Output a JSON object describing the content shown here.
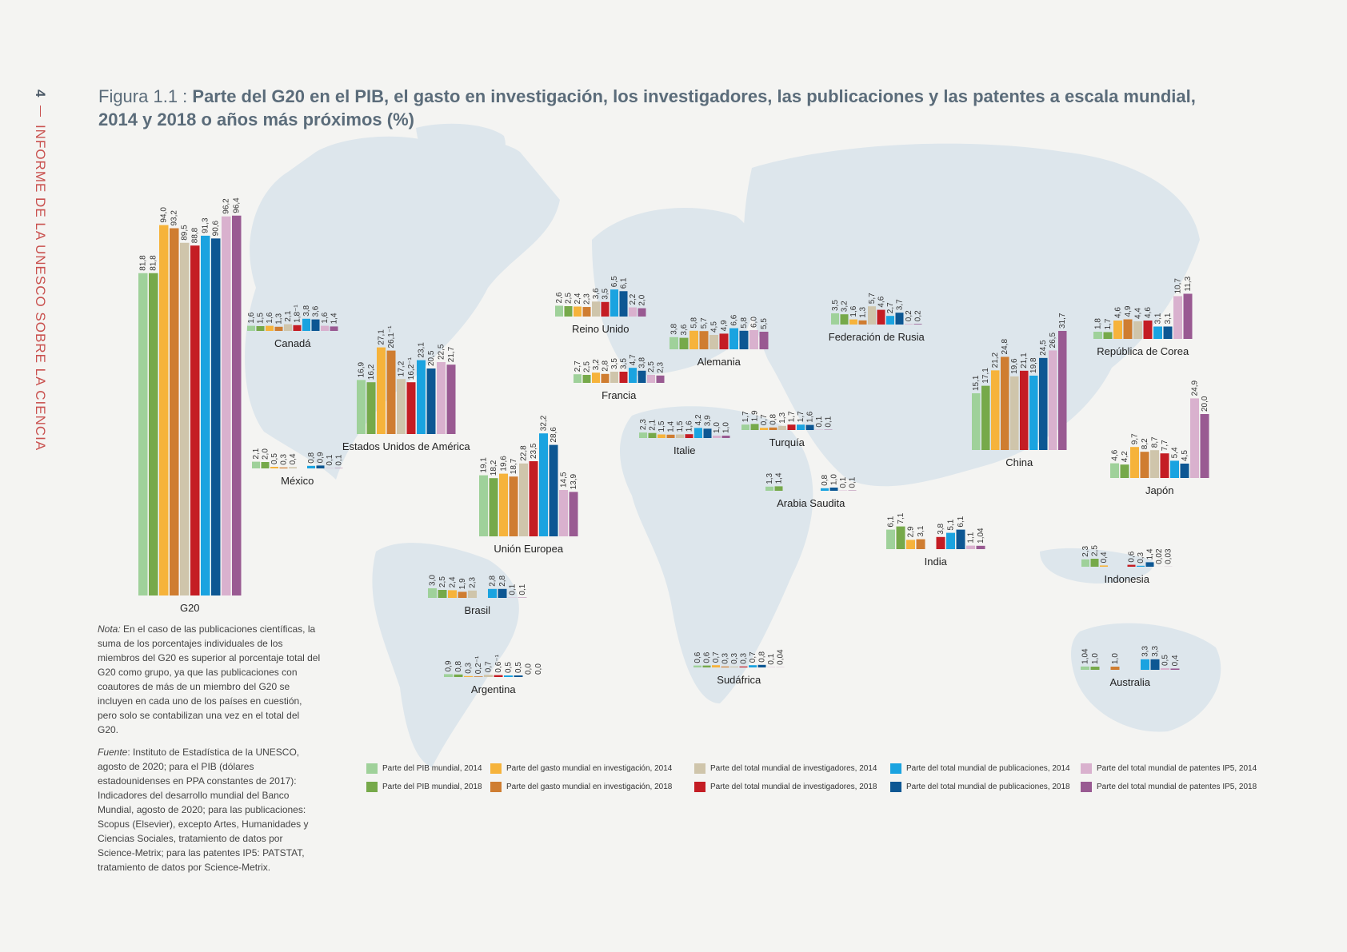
{
  "page": {
    "page_number": "4",
    "running_header": "INFORME DE LA UNESCO SOBRE LA CIENCIA",
    "title_prefix": "Figura 1.1 : ",
    "title_main": "Parte del G20 en el PIB, el gasto en investigación, los investigadores, las publicaciones y las patentes a escala mundial, 2014 y 2018 o años más próximos (%)"
  },
  "notes": {
    "nota_label": "Nota:",
    "nota_text": " En el caso de las publicaciones científicas, la suma de los porcentajes individuales de los miembros del G20 es superior al porcentaje total del G20 como grupo, ya que las publicaciones con coautores de más de un miembro del G20 se incluyen en cada uno de los países en cuestión, pero solo se contabilizan una vez en el total del G20.",
    "fuente_label": "Fuente",
    "fuente_text": ": Instituto de Estadística de la UNESCO, agosto de 2020; para el PIB (dólares estadounidenses en PPA constantes de 2017): Indicadores del desarrollo mundial del Banco Mundial, agosto de 2020; para las publicaciones: Scopus (Elsevier), excepto Artes, Humanidades y Ciencias Sociales, tratamiento de datos por Science-Metrix; para las patentes IP5: PATSTAT, tratamiento de datos por Science-Metrix."
  },
  "chart_data": {
    "type": "bar",
    "series": [
      {
        "name": "Parte del PIB mundial, 2014",
        "color": "#9fd19a"
      },
      {
        "name": "Parte del PIB mundial, 2018",
        "color": "#76a94a"
      },
      {
        "name": "Parte del gasto mundial en investigación, 2014",
        "color": "#f6b33b"
      },
      {
        "name": "Parte del gasto mundial en investigación, 2018",
        "color": "#cf7d31"
      },
      {
        "name": "Parte del total mundial de investigadores, 2014",
        "color": "#cfc5ab"
      },
      {
        "name": "Parte del total mundial de investigadores, 2018",
        "color": "#c41d24"
      },
      {
        "name": "Parte del total mundial de publicaciones, 2014",
        "color": "#1aa3e0"
      },
      {
        "name": "Parte del total mundial de publicaciones, 2018",
        "color": "#0d5793"
      },
      {
        "name": "Parte del total mundial de patentes IP5, 2014",
        "color": "#d9b1ce"
      },
      {
        "name": "Parte del total mundial de patentes IP5, 2018",
        "color": "#995a92"
      }
    ],
    "groups": [
      {
        "name": "G20",
        "values": [
          81.8,
          81.8,
          94.0,
          93.2,
          89.5,
          88.8,
          91.3,
          90.6,
          96.2,
          96.4
        ],
        "labels": [
          "81,8",
          "81,8",
          "94,0",
          "93,2",
          "89,5",
          "88,8",
          "91,3",
          "90,6",
          "96,2",
          "96,4"
        ]
      },
      {
        "name": "Canadá",
        "values": [
          1.6,
          1.5,
          1.6,
          1.3,
          2.1,
          1.8,
          3.8,
          3.6,
          1.6,
          1.4
        ],
        "labels": [
          "1,6",
          "1,5",
          "1,6",
          "1,3",
          "2,1",
          "1,8⁻¹",
          "3,8",
          "3,6",
          "1,6",
          "1,4"
        ]
      },
      {
        "name": "México",
        "values": [
          2.1,
          2.0,
          0.5,
          0.3,
          0.4,
          0,
          0.8,
          0.9,
          0.1,
          0.1
        ],
        "labels": [
          "2,1",
          "2,0",
          "0,5",
          "0,3",
          "0,4",
          "",
          "0,8",
          "0,9",
          "0,1",
          "0,1"
        ]
      },
      {
        "name": "Estados Unidos de América",
        "values": [
          16.9,
          16.2,
          27.1,
          26.1,
          17.2,
          16.2,
          23.1,
          20.5,
          22.5,
          21.7
        ],
        "labels": [
          "16,9",
          "16,2",
          "27,1",
          "26,1⁻¹",
          "17,2",
          "16,2⁻¹",
          "23,1",
          "20,5",
          "22,5",
          "21,7"
        ]
      },
      {
        "name": "Brasil",
        "values": [
          3.0,
          2.5,
          2.4,
          1.9,
          2.3,
          0,
          2.8,
          2.8,
          0.1,
          0.1
        ],
        "labels": [
          "3,0",
          "2,5",
          "2,4",
          "1,9",
          "2,3",
          "",
          "2,8",
          "2,8",
          "0,1",
          "0,1"
        ]
      },
      {
        "name": "Argentina",
        "values": [
          0.9,
          0.8,
          0.3,
          0.2,
          0.7,
          0.6,
          0.5,
          0.5,
          0.0,
          0.0
        ],
        "labels": [
          "0,9",
          "0,8",
          "0,3",
          "0,2⁻¹",
          "0,7",
          "0,6⁻¹",
          "0,5",
          "0,5",
          "0,0",
          "0,0"
        ]
      },
      {
        "name": "Unión Europea",
        "values": [
          19.1,
          18.2,
          19.6,
          18.7,
          22.8,
          23.5,
          32.2,
          28.6,
          14.5,
          13.9
        ],
        "labels": [
          "19,1",
          "18,2",
          "19,6",
          "18,7",
          "22,8",
          "23,5",
          "32,2",
          "28,6",
          "14,5",
          "13,9"
        ]
      },
      {
        "name": "Reino Unido",
        "values": [
          2.6,
          2.5,
          2.4,
          2.3,
          3.6,
          3.5,
          6.5,
          6.1,
          2.2,
          2.0
        ],
        "labels": [
          "2,6",
          "2,5",
          "2,4",
          "2,3",
          "3,6",
          "3,5",
          "6,5",
          "6,1",
          "2,2",
          "2,0"
        ]
      },
      {
        "name": "Francia",
        "values": [
          2.7,
          2.5,
          3.2,
          2.8,
          3.5,
          3.5,
          4.7,
          3.8,
          2.5,
          2.3
        ],
        "labels": [
          "2,7",
          "2,5",
          "3,2",
          "2,8",
          "3,5",
          "3,5",
          "4,7",
          "3,8",
          "2,5",
          "2,3"
        ]
      },
      {
        "name": "Alemania",
        "values": [
          3.8,
          3.6,
          5.8,
          5.7,
          4.5,
          4.9,
          6.6,
          5.8,
          6.0,
          5.5
        ],
        "labels": [
          "3,8",
          "3,6",
          "5,8",
          "5,7",
          "4,5",
          "4,9",
          "6,6",
          "5,8",
          "6,0",
          "5,5"
        ]
      },
      {
        "name": "Italie",
        "values": [
          2.3,
          2.1,
          1.5,
          1.4,
          1.5,
          1.6,
          4.2,
          3.9,
          1.0,
          1.0
        ],
        "labels": [
          "2,3",
          "2,1",
          "1,5",
          "1,4",
          "1,5",
          "1,6",
          "4,2",
          "3,9",
          "1,0",
          "1,0"
        ]
      },
      {
        "name": "Turquía",
        "values": [
          1.7,
          1.9,
          0.7,
          0.8,
          1.3,
          1.7,
          1.7,
          1.6,
          0.1,
          0.1
        ],
        "labels": [
          "1,7",
          "1,9",
          "0,7",
          "0,8",
          "1,3",
          "1,7",
          "1,7",
          "1,6",
          "0,1",
          "0,1"
        ]
      },
      {
        "name": "Arabia Saudita",
        "values": [
          1.3,
          1.4,
          0,
          0,
          0,
          0,
          0.8,
          1.0,
          0.1,
          0.1
        ],
        "labels": [
          "1,3",
          "1,4",
          "",
          "",
          "",
          "",
          "0,8",
          "1,0",
          "0,1",
          "0,1"
        ]
      },
      {
        "name": "Federación de Rusia",
        "values": [
          3.5,
          3.2,
          1.6,
          1.3,
          5.7,
          4.6,
          2.7,
          3.7,
          0.2,
          0.2
        ],
        "labels": [
          "3,5",
          "3,2",
          "1,6",
          "1,3",
          "5,7",
          "4,6",
          "2,7",
          "3,7",
          "0,2",
          "0,2"
        ]
      },
      {
        "name": "India",
        "values": [
          6.1,
          7.1,
          2.9,
          3.1,
          0,
          3.8,
          5.1,
          6.1,
          1.1,
          1.04
        ],
        "labels": [
          "6,1",
          "7,1",
          "2,9",
          "3,1",
          "",
          "3,8",
          "5,1",
          "6,1",
          "1,1",
          "1,04"
        ]
      },
      {
        "name": "Sudáfrica",
        "values": [
          0.6,
          0.6,
          0.7,
          0.3,
          0.3,
          0.3,
          0.7,
          0.8,
          0.1,
          0.04
        ],
        "labels": [
          "0,6",
          "0,6",
          "0,7",
          "0,3",
          "0,3",
          "0,3",
          "0,7",
          "0,8",
          "0,1",
          "0,04"
        ]
      },
      {
        "name": "China",
        "values": [
          15.1,
          17.1,
          21.2,
          24.8,
          19.6,
          21.1,
          19.8,
          24.5,
          26.5,
          31.7
        ],
        "labels": [
          "15,1",
          "17,1",
          "21,2",
          "24,8",
          "19,6",
          "21,1",
          "19,8",
          "24,5",
          "26,5",
          "31,7"
        ]
      },
      {
        "name": "República de Corea",
        "values": [
          1.8,
          1.7,
          4.6,
          4.9,
          4.4,
          4.6,
          3.1,
          3.1,
          10.7,
          11.3
        ],
        "labels": [
          "1,8",
          "1,7",
          "4,6",
          "4,9",
          "4,4",
          "4,6",
          "3,1",
          "3,1",
          "10,7",
          "11,3"
        ]
      },
      {
        "name": "Japón",
        "values": [
          4.6,
          4.2,
          9.7,
          8.2,
          8.7,
          7.7,
          5.4,
          4.5,
          24.9,
          20.0
        ],
        "labels": [
          "4,6",
          "4,2",
          "9,7",
          "8,2",
          "8,7",
          "7,7",
          "5,4",
          "4,5",
          "24,9",
          "20,0"
        ]
      },
      {
        "name": "Indonesia",
        "values": [
          2.3,
          2.5,
          0.4,
          0,
          0,
          0.6,
          0.3,
          1.4,
          0.02,
          0.03
        ],
        "labels": [
          "2,3",
          "2,5",
          "0,4",
          "",
          "",
          "0,6",
          "0,3",
          "1,4",
          "0,02",
          "0,03"
        ]
      },
      {
        "name": "Australia",
        "values": [
          1.04,
          1.0,
          0,
          1.0,
          0,
          0,
          3.3,
          3.3,
          0.5,
          0.4
        ],
        "labels": [
          "1,04",
          "1,0",
          "",
          "1,0",
          "",
          "",
          "3,3",
          "3,3",
          "0,5",
          "0,4"
        ]
      }
    ]
  }
}
